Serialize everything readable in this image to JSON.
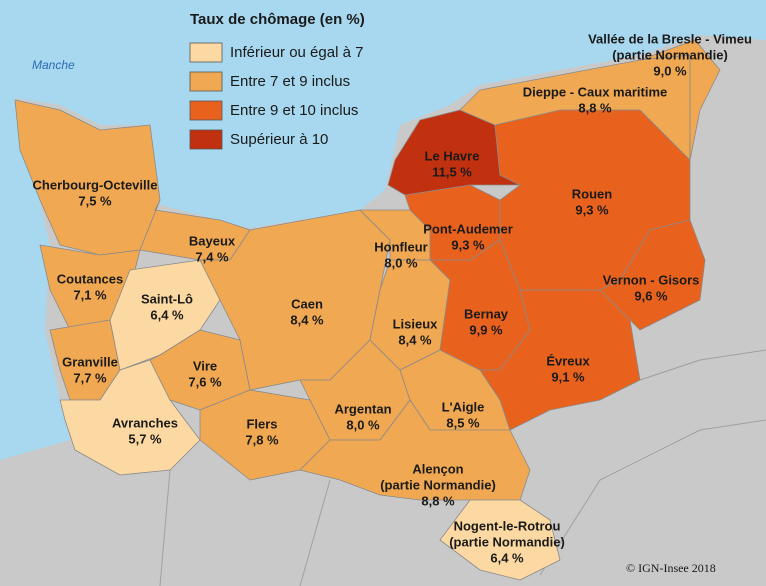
{
  "title": "Taux de chômage (en %)",
  "sea_label": "Manche",
  "credit": "© IGN-Insee 2018",
  "legend": [
    {
      "label": "Inférieur ou égal à 7",
      "color": "#fcd9a2"
    },
    {
      "label": "Entre 7 et 9 inclus",
      "color": "#f0a852"
    },
    {
      "label": "Entre 9 et 10 inclus",
      "color": "#e8621e"
    },
    {
      "label": "Supérieur à 10",
      "color": "#c1300f"
    }
  ],
  "regions": [
    {
      "name": "Cherbourg-Octeville",
      "rate": "7,5 %",
      "color": "#f0a852"
    },
    {
      "name": "Coutances",
      "rate": "7,1 %",
      "color": "#f0a852"
    },
    {
      "name": "Granville",
      "rate": "7,7 %",
      "color": "#f0a852"
    },
    {
      "name": "Avranches",
      "rate": "5,7 %",
      "color": "#fcd9a2"
    },
    {
      "name": "Saint-Lô",
      "rate": "6,4 %",
      "color": "#fcd9a2"
    },
    {
      "name": "Bayeux",
      "rate": "7,4 %",
      "color": "#f0a852"
    },
    {
      "name": "Vire",
      "rate": "7,6 %",
      "color": "#f0a852"
    },
    {
      "name": "Flers",
      "rate": "7,8 %",
      "color": "#f0a852"
    },
    {
      "name": "Caen",
      "rate": "8,4 %",
      "color": "#f0a852"
    },
    {
      "name": "Argentan",
      "rate": "8,0 %",
      "color": "#f0a852"
    },
    {
      "name": "Honfleur",
      "rate": "8,0 %",
      "color": "#f0a852"
    },
    {
      "name": "Lisieux",
      "rate": "8,4 %",
      "color": "#f0a852"
    },
    {
      "name": "L'Aigle",
      "rate": "8,5 %",
      "color": "#f0a852"
    },
    {
      "name": "Alençon",
      "note": "(partie Normandie)",
      "rate": "8,8 %",
      "color": "#f0a852"
    },
    {
      "name": "Nogent-le-Rotrou",
      "note": "(partie Normandie)",
      "rate": "6,4 %",
      "color": "#fcd9a2"
    },
    {
      "name": "Pont-Audemer",
      "rate": "9,3 %",
      "color": "#e8621e"
    },
    {
      "name": "Le Havre",
      "rate": "11,5 %",
      "color": "#c1300f"
    },
    {
      "name": "Bernay",
      "rate": "9,9 %",
      "color": "#e8621e"
    },
    {
      "name": "Évreux",
      "rate": "9,1 %",
      "color": "#e8621e"
    },
    {
      "name": "Rouen",
      "rate": "9,3 %",
      "color": "#e8621e"
    },
    {
      "name": "Vernon - Gisors",
      "rate": "9,6 %",
      "color": "#e8621e"
    },
    {
      "name": "Dieppe - Caux maritime",
      "rate": "8,8 %",
      "color": "#f0a852"
    },
    {
      "name": "Vallée de la Bresle - Vimeu",
      "note": "(partie Normandie)",
      "rate": "9,0 %",
      "color": "#f0a852"
    }
  ]
}
